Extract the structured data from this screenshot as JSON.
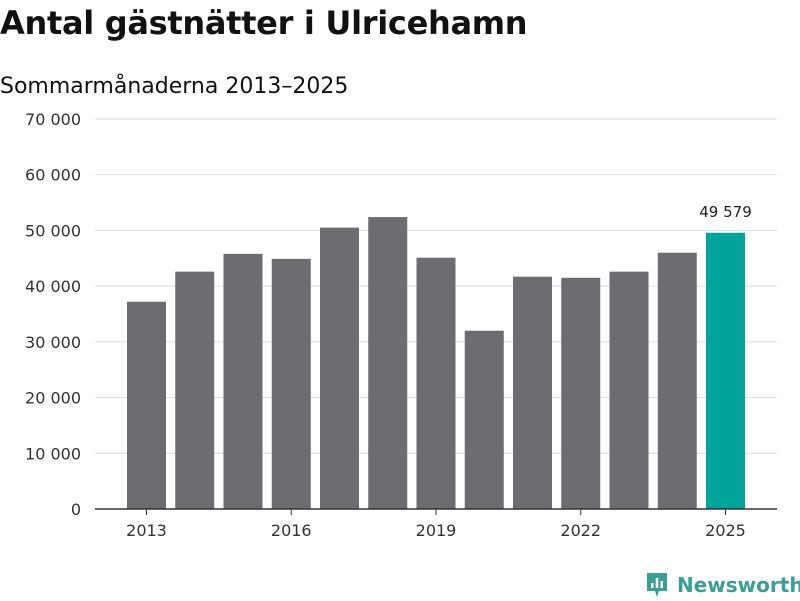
{
  "header": {
    "title": "Antal gästnätter i Ulricehamn",
    "subtitle": "Sommarmånaderna 2013–2025"
  },
  "brand": {
    "name": "Newsworthy",
    "icon": "newsworthy-logo-icon",
    "color": "#3a9e96"
  },
  "colors": {
    "bar": "#6d6c71",
    "highlight": "#00a49a",
    "grid": "#dddddd",
    "axis": "#333333"
  },
  "chart_data": {
    "type": "bar",
    "title": "Antal gästnätter i Ulricehamn",
    "subtitle": "Sommarmånaderna 2013–2025",
    "xlabel": "",
    "ylabel": "",
    "categories": [
      "2013",
      "2014",
      "2015",
      "2016",
      "2017",
      "2018",
      "2019",
      "2020",
      "2021",
      "2022",
      "2023",
      "2024",
      "2025"
    ],
    "values": [
      37200,
      42600,
      45800,
      44900,
      50500,
      52400,
      45100,
      32000,
      41700,
      41500,
      42600,
      46000,
      49579
    ],
    "highlight_index": 12,
    "highlight_label": "49 579",
    "ylim": [
      0,
      70000
    ],
    "yticks": [
      0,
      10000,
      20000,
      30000,
      40000,
      50000,
      60000,
      70000
    ],
    "ytick_labels": [
      "0",
      "10 000",
      "20 000",
      "30 000",
      "40 000",
      "50 000",
      "60 000",
      "70 000"
    ],
    "xtick_labels": [
      "2013",
      "2016",
      "2019",
      "2022",
      "2025"
    ],
    "grid": true
  }
}
